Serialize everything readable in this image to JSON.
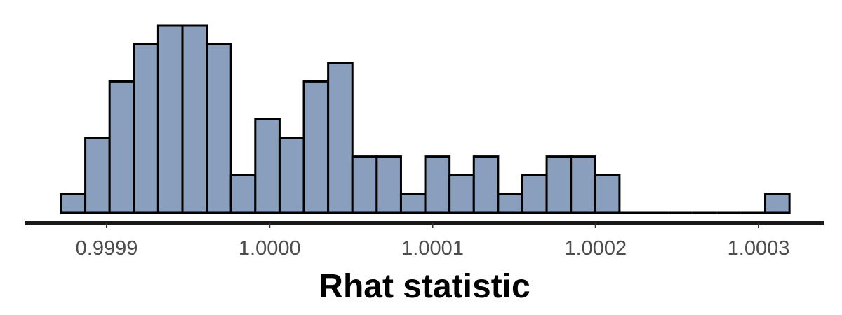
{
  "chart_data": {
    "type": "histogram",
    "title": "",
    "xlabel": "Rhat statistic",
    "ylabel": "",
    "bar_color": "#8A9FBD",
    "bar_stroke": "#000000",
    "axis_color": "#1a1a1a",
    "bin_width": 1.49e-05,
    "bin_start": 0.999872,
    "xlim": [
      0.99986,
      1.00035
    ],
    "counts": [
      1,
      4,
      7,
      9,
      10,
      10,
      9,
      2,
      5,
      4,
      7,
      8,
      3,
      3,
      1,
      3,
      2,
      3,
      1,
      2,
      3,
      3,
      2,
      0,
      0,
      0,
      0,
      0,
      0,
      1
    ],
    "ylim": [
      0,
      10.5
    ],
    "xticks": [
      {
        "value": 0.9999,
        "label": "0.9999"
      },
      {
        "value": 1.0,
        "label": "1.0000"
      },
      {
        "value": 1.0001,
        "label": "1.0001"
      },
      {
        "value": 1.0002,
        "label": "1.0002"
      },
      {
        "value": 1.0003,
        "label": "1.0003"
      }
    ],
    "grid": false,
    "legend": "none"
  }
}
